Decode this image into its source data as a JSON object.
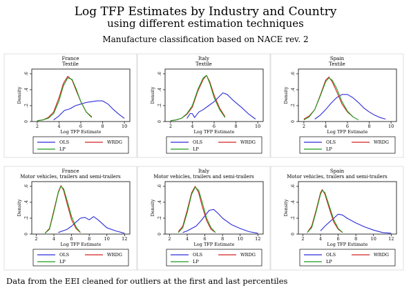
{
  "header": {
    "title": "Log TFP Estimates by Industry and Country",
    "subtitle": "using different estimation techniques",
    "caption": "Manufacture classification based on NACE rev. 2"
  },
  "footer": {
    "note": "Data from the EEI cleaned for outliers at the first and last percentiles"
  },
  "colors": {
    "OLS": "#2b2bd9",
    "WRDG": "#d42020",
    "LP": "#1a9a1a"
  },
  "chart_data": [
    {
      "type": "line",
      "title": "France",
      "subtitle": "Textile",
      "xlabel": "Log TFP Estimate",
      "ylabel": "Density",
      "xlim": [
        1.5,
        10.5
      ],
      "ylim": [
        0,
        0.66
      ],
      "xticks": [
        2,
        4,
        6,
        8,
        10
      ],
      "yticks": [
        0,
        0.2,
        0.4,
        0.6
      ],
      "ytick_labels": [
        "0",
        ".2",
        ".4",
        ".6"
      ],
      "series": [
        {
          "name": "OLS",
          "points": [
            [
              3.5,
              0.02
            ],
            [
              4,
              0.07
            ],
            [
              4.2,
              0.1
            ],
            [
              4.5,
              0.14
            ],
            [
              5,
              0.16
            ],
            [
              5.5,
              0.2
            ],
            [
              6,
              0.22
            ],
            [
              6.5,
              0.24
            ],
            [
              7,
              0.25
            ],
            [
              7.5,
              0.26
            ],
            [
              8,
              0.26
            ],
            [
              8.5,
              0.22
            ],
            [
              9,
              0.15
            ],
            [
              9.5,
              0.09
            ],
            [
              10,
              0.04
            ]
          ]
        },
        {
          "name": "WRDG",
          "points": [
            [
              2,
              0.01
            ],
            [
              2.5,
              0.02
            ],
            [
              3,
              0.05
            ],
            [
              3.5,
              0.12
            ],
            [
              4,
              0.3
            ],
            [
              4.4,
              0.48
            ],
            [
              4.8,
              0.57
            ],
            [
              5.2,
              0.52
            ],
            [
              5.6,
              0.38
            ],
            [
              6,
              0.25
            ],
            [
              6.5,
              0.12
            ],
            [
              7,
              0.06
            ]
          ]
        },
        {
          "name": "LP",
          "points": [
            [
              2,
              0.01
            ],
            [
              2.5,
              0.02
            ],
            [
              3,
              0.04
            ],
            [
              3.5,
              0.1
            ],
            [
              4,
              0.26
            ],
            [
              4.4,
              0.45
            ],
            [
              4.8,
              0.55
            ],
            [
              5.2,
              0.53
            ],
            [
              5.6,
              0.4
            ],
            [
              6,
              0.25
            ],
            [
              6.5,
              0.12
            ],
            [
              7,
              0.05
            ]
          ]
        }
      ]
    },
    {
      "type": "line",
      "title": "Italy",
      "subtitle": "Textile",
      "xlabel": "Log TFP Estimate",
      "ylabel": "Density",
      "xlim": [
        1.5,
        10.5
      ],
      "ylim": [
        0,
        0.66
      ],
      "xticks": [
        2,
        4,
        6,
        8,
        10
      ],
      "yticks": [
        0,
        0.2,
        0.4,
        0.6
      ],
      "ytick_labels": [
        "0",
        ".2",
        ".4",
        ".6"
      ],
      "series": [
        {
          "name": "OLS",
          "points": [
            [
              3.5,
              0.04
            ],
            [
              3.8,
              0.1
            ],
            [
              4,
              0.1
            ],
            [
              4.2,
              0.05
            ],
            [
              4.6,
              0.12
            ],
            [
              5,
              0.15
            ],
            [
              5.5,
              0.2
            ],
            [
              6,
              0.25
            ],
            [
              6.5,
              0.32
            ],
            [
              6.8,
              0.36
            ],
            [
              7.2,
              0.34
            ],
            [
              7.8,
              0.26
            ],
            [
              8.5,
              0.18
            ],
            [
              9.2,
              0.09
            ],
            [
              9.8,
              0.03
            ]
          ]
        },
        {
          "name": "WRDG",
          "points": [
            [
              2,
              0.01
            ],
            [
              2.5,
              0.02
            ],
            [
              3,
              0.04
            ],
            [
              3.5,
              0.09
            ],
            [
              4,
              0.18
            ],
            [
              4.5,
              0.38
            ],
            [
              5,
              0.53
            ],
            [
              5.3,
              0.58
            ],
            [
              5.6,
              0.5
            ],
            [
              6,
              0.33
            ],
            [
              6.5,
              0.17
            ],
            [
              7,
              0.06
            ]
          ]
        },
        {
          "name": "LP",
          "points": [
            [
              2,
              0.01
            ],
            [
              2.5,
              0.02
            ],
            [
              3,
              0.04
            ],
            [
              3.5,
              0.1
            ],
            [
              4,
              0.2
            ],
            [
              4.5,
              0.4
            ],
            [
              5,
              0.55
            ],
            [
              5.3,
              0.58
            ],
            [
              5.6,
              0.48
            ],
            [
              6,
              0.3
            ],
            [
              6.5,
              0.15
            ],
            [
              7,
              0.05
            ]
          ]
        }
      ]
    },
    {
      "type": "line",
      "title": "Spain",
      "subtitle": "Textile",
      "xlabel": "Log TFP Estimate",
      "ylabel": "Density",
      "xlim": [
        1.5,
        10.5
      ],
      "ylim": [
        0,
        0.66
      ],
      "xticks": [
        2,
        4,
        6,
        8,
        10
      ],
      "yticks": [
        0,
        0.2,
        0.4,
        0.6
      ],
      "ytick_labels": [
        "0",
        ".2",
        ".4",
        ".6"
      ],
      "series": [
        {
          "name": "OLS",
          "points": [
            [
              3,
              0.03
            ],
            [
              3.5,
              0.08
            ],
            [
              4,
              0.15
            ],
            [
              4.5,
              0.23
            ],
            [
              5,
              0.3
            ],
            [
              5.5,
              0.34
            ],
            [
              6,
              0.34
            ],
            [
              6.5,
              0.3
            ],
            [
              7,
              0.24
            ],
            [
              7.5,
              0.17
            ],
            [
              8,
              0.12
            ],
            [
              8.5,
              0.08
            ],
            [
              9,
              0.05
            ],
            [
              9.5,
              0.03
            ]
          ]
        },
        {
          "name": "WRDG",
          "points": [
            [
              2,
              0.03
            ],
            [
              2.5,
              0.07
            ],
            [
              3,
              0.15
            ],
            [
              3.5,
              0.33
            ],
            [
              4,
              0.52
            ],
            [
              4.3,
              0.56
            ],
            [
              4.6,
              0.5
            ],
            [
              5,
              0.38
            ],
            [
              5.5,
              0.22
            ],
            [
              6,
              0.12
            ],
            [
              6.5,
              0.06
            ]
          ]
        },
        {
          "name": "LP",
          "points": [
            [
              2,
              0.02
            ],
            [
              2.5,
              0.06
            ],
            [
              3,
              0.15
            ],
            [
              3.5,
              0.32
            ],
            [
              4,
              0.5
            ],
            [
              4.3,
              0.55
            ],
            [
              4.6,
              0.52
            ],
            [
              5,
              0.42
            ],
            [
              5.5,
              0.25
            ],
            [
              6,
              0.13
            ],
            [
              6.5,
              0.06
            ],
            [
              7,
              0.02
            ]
          ]
        }
      ]
    },
    {
      "type": "line",
      "title": "France",
      "subtitle": "Motor vehicles, trailers and semi-trailers",
      "xlabel": "Log TFP Estimate",
      "ylabel": "Density",
      "xlim": [
        1.5,
        12.6
      ],
      "ylim": [
        0,
        0.66
      ],
      "xticks": [
        2,
        4,
        6,
        8,
        10,
        12
      ],
      "yticks": [
        0,
        0.2,
        0.4,
        0.6
      ],
      "ytick_labels": [
        "0",
        ".2",
        ".4",
        ".6"
      ],
      "series": [
        {
          "name": "OLS",
          "points": [
            [
              4.5,
              0.02
            ],
            [
              5,
              0.04
            ],
            [
              5.5,
              0.06
            ],
            [
              6,
              0.1
            ],
            [
              6.5,
              0.15
            ],
            [
              7,
              0.2
            ],
            [
              7.5,
              0.21
            ],
            [
              8,
              0.18
            ],
            [
              8.5,
              0.22
            ],
            [
              9,
              0.18
            ],
            [
              10,
              0.08
            ],
            [
              11,
              0.04
            ],
            [
              12,
              0.01
            ]
          ]
        },
        {
          "name": "WRDG",
          "points": [
            [
              3,
              0.01
            ],
            [
              3.5,
              0.07
            ],
            [
              4,
              0.3
            ],
            [
              4.5,
              0.53
            ],
            [
              4.8,
              0.61
            ],
            [
              5.1,
              0.55
            ],
            [
              5.5,
              0.38
            ],
            [
              6,
              0.18
            ],
            [
              6.5,
              0.07
            ],
            [
              7,
              0.02
            ]
          ]
        },
        {
          "name": "LP",
          "points": [
            [
              3,
              0.01
            ],
            [
              3.5,
              0.06
            ],
            [
              4,
              0.28
            ],
            [
              4.5,
              0.52
            ],
            [
              4.8,
              0.6
            ],
            [
              5.1,
              0.57
            ],
            [
              5.5,
              0.42
            ],
            [
              6,
              0.22
            ],
            [
              6.5,
              0.09
            ],
            [
              7,
              0.02
            ]
          ]
        }
      ]
    },
    {
      "type": "line",
      "title": "Italy",
      "subtitle": "Motor vehicles, trailers and semi-trailers",
      "xlabel": "Log TFP Estimate",
      "ylabel": "Density",
      "xlim": [
        1.5,
        12.6
      ],
      "ylim": [
        0,
        0.66
      ],
      "xticks": [
        2,
        4,
        6,
        8,
        10,
        12
      ],
      "yticks": [
        0,
        0.2,
        0.4,
        0.6
      ],
      "ytick_labels": [
        "0",
        ".2",
        ".4",
        ".6"
      ],
      "series": [
        {
          "name": "OLS",
          "points": [
            [
              3.5,
              0.02
            ],
            [
              4,
              0.04
            ],
            [
              4.5,
              0.07
            ],
            [
              5,
              0.1
            ],
            [
              5.5,
              0.16
            ],
            [
              6,
              0.23
            ],
            [
              6.5,
              0.3
            ],
            [
              7,
              0.31
            ],
            [
              7.5,
              0.26
            ],
            [
              8,
              0.2
            ],
            [
              9,
              0.12
            ],
            [
              10,
              0.07
            ],
            [
              11,
              0.03
            ],
            [
              12,
              0.01
            ]
          ]
        },
        {
          "name": "WRDG",
          "points": [
            [
              3,
              0.03
            ],
            [
              3.5,
              0.1
            ],
            [
              4,
              0.3
            ],
            [
              4.5,
              0.52
            ],
            [
              4.9,
              0.6
            ],
            [
              5.3,
              0.52
            ],
            [
              5.7,
              0.35
            ],
            [
              6.2,
              0.17
            ],
            [
              6.7,
              0.06
            ],
            [
              7.2,
              0.02
            ]
          ]
        },
        {
          "name": "LP",
          "points": [
            [
              3,
              0.02
            ],
            [
              3.5,
              0.08
            ],
            [
              4,
              0.27
            ],
            [
              4.5,
              0.5
            ],
            [
              4.9,
              0.59
            ],
            [
              5.3,
              0.55
            ],
            [
              5.7,
              0.4
            ],
            [
              6.2,
              0.2
            ],
            [
              6.7,
              0.08
            ],
            [
              7.2,
              0.02
            ]
          ]
        }
      ]
    },
    {
      "type": "line",
      "title": "Spain",
      "subtitle": "Motor vehicles, trailers and semi-trailers",
      "xlabel": "Log TFP Estimate",
      "ylabel": "Density",
      "xlim": [
        1.5,
        12.6
      ],
      "ylim": [
        0,
        0.66
      ],
      "xticks": [
        2,
        4,
        6,
        8,
        10,
        12
      ],
      "yticks": [
        0,
        0.2,
        0.4,
        0.6
      ],
      "ytick_labels": [
        "0",
        ".2",
        ".4",
        ".6"
      ],
      "series": [
        {
          "name": "OLS",
          "points": [
            [
              4,
              0.04
            ],
            [
              4.5,
              0.1
            ],
            [
              5,
              0.15
            ],
            [
              5.5,
              0.2
            ],
            [
              6,
              0.25
            ],
            [
              6.5,
              0.24
            ],
            [
              7,
              0.2
            ],
            [
              8,
              0.14
            ],
            [
              9,
              0.09
            ],
            [
              10,
              0.05
            ],
            [
              11,
              0.02
            ],
            [
              12,
              0.01
            ]
          ]
        },
        {
          "name": "WRDG",
          "points": [
            [
              2.5,
              0.02
            ],
            [
              3,
              0.1
            ],
            [
              3.5,
              0.3
            ],
            [
              4,
              0.52
            ],
            [
              4.2,
              0.56
            ],
            [
              4.5,
              0.5
            ],
            [
              5,
              0.32
            ],
            [
              5.5,
              0.15
            ],
            [
              6,
              0.06
            ],
            [
              6.5,
              0.02
            ]
          ]
        },
        {
          "name": "LP",
          "points": [
            [
              2.5,
              0.02
            ],
            [
              3,
              0.08
            ],
            [
              3.5,
              0.28
            ],
            [
              4,
              0.5
            ],
            [
              4.2,
              0.55
            ],
            [
              4.5,
              0.52
            ],
            [
              5,
              0.35
            ],
            [
              5.5,
              0.18
            ],
            [
              6,
              0.07
            ],
            [
              6.5,
              0.02
            ]
          ]
        }
      ]
    }
  ]
}
